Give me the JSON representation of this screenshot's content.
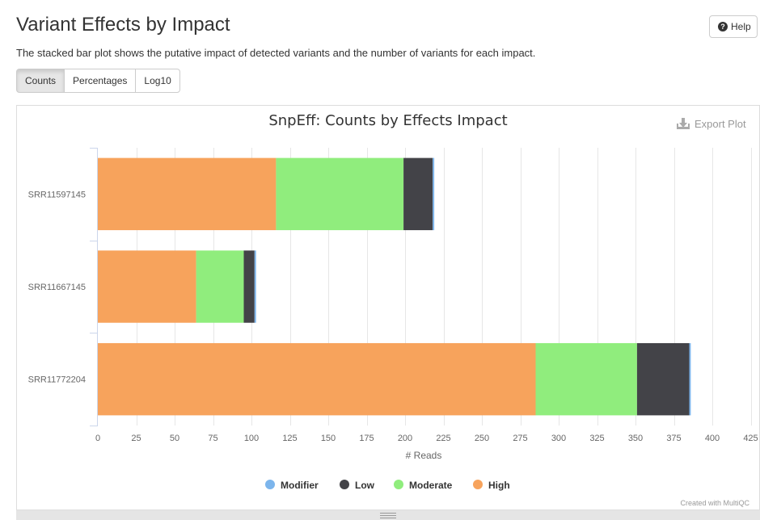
{
  "page": {
    "title": "Variant Effects by Impact",
    "description": "The stacked bar plot shows the putative impact of detected variants and the number of variants for each impact.",
    "help_label": "Help",
    "view_buttons": [
      "Counts",
      "Percentages",
      "Log10"
    ],
    "active_view": "Counts",
    "export_label": "Export Plot",
    "credit": "Created with MultiQC"
  },
  "chart_data": {
    "type": "bar",
    "orientation": "horizontal",
    "stacked": true,
    "title": "SnpEff: Counts by Effects Impact",
    "xlabel": "# Reads",
    "ylabel": "",
    "xlim": [
      0,
      425
    ],
    "xticks": [
      0,
      25,
      50,
      75,
      100,
      125,
      150,
      175,
      200,
      225,
      250,
      275,
      300,
      325,
      350,
      375,
      400,
      425
    ],
    "categories": [
      "SRR11597145",
      "SRR11667145",
      "SRR11772204"
    ],
    "series": [
      {
        "name": "High",
        "color": "#f7a35c",
        "values": [
          116,
          64,
          285
        ]
      },
      {
        "name": "Moderate",
        "color": "#90ed7d",
        "values": [
          83,
          31,
          66
        ]
      },
      {
        "name": "Low",
        "color": "#434348",
        "values": [
          19,
          7,
          34
        ]
      },
      {
        "name": "Modifier",
        "color": "#7cb5ec",
        "values": [
          1,
          1,
          1
        ]
      }
    ],
    "legend_order": [
      "Modifier",
      "Low",
      "Moderate",
      "High"
    ],
    "legend_position": "bottom",
    "grid": true
  }
}
